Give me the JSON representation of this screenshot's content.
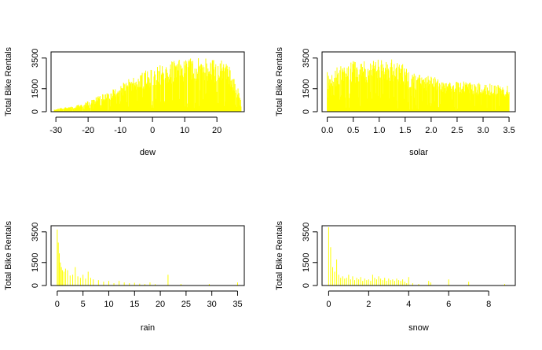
{
  "chart_data": [
    {
      "type": "bar",
      "xlabel": "dew",
      "ylabel": "Total Bike Rentals",
      "color": "#ffff00",
      "xlim": [
        -31.5,
        28.5
      ],
      "ylim": [
        0,
        3900
      ],
      "xticks": [
        -30,
        -20,
        -10,
        0,
        10,
        20
      ],
      "xtick_labels": [
        "-30",
        "-20",
        "-10",
        "0",
        "10",
        "20"
      ],
      "yticks": [
        0,
        1500,
        3500
      ],
      "ytick_labels": [
        "0",
        "1500",
        "3500"
      ],
      "profile": [
        [
          -30.5,
          150
        ],
        [
          -28,
          300
        ],
        [
          -25,
          350
        ],
        [
          -22,
          500
        ],
        [
          -19,
          800
        ],
        [
          -16,
          1100
        ],
        [
          -13,
          1400
        ],
        [
          -10,
          1800
        ],
        [
          -6,
          2300
        ],
        [
          -2,
          2700
        ],
        [
          2,
          3000
        ],
        [
          6,
          3300
        ],
        [
          10,
          3500
        ],
        [
          14,
          3600
        ],
        [
          18,
          3500
        ],
        [
          22,
          3400
        ],
        [
          24,
          3000
        ],
        [
          26,
          1800
        ],
        [
          27.5,
          1100
        ]
      ]
    },
    {
      "type": "bar",
      "xlabel": "solar",
      "ylabel": "Total Bike Rentals",
      "color": "#ffff00",
      "xlim": [
        -0.1,
        3.62
      ],
      "ylim": [
        0,
        3900
      ],
      "xticks": [
        0,
        0.5,
        1,
        1.5,
        2,
        2.5,
        3,
        3.5
      ],
      "xtick_labels": [
        "0.0",
        "0.5",
        "1.0",
        "1.5",
        "2.0",
        "2.5",
        "3.0",
        "3.5"
      ],
      "yticks": [
        0,
        1500,
        3500
      ],
      "ytick_labels": [
        "0",
        "1500",
        "3500"
      ],
      "profile": [
        [
          0,
          2600
        ],
        [
          0.3,
          3100
        ],
        [
          0.6,
          3500
        ],
        [
          0.9,
          3400
        ],
        [
          1.2,
          3500
        ],
        [
          1.4,
          3300
        ],
        [
          1.6,
          2600
        ],
        [
          1.8,
          2500
        ],
        [
          2.0,
          2400
        ],
        [
          2.3,
          2100
        ],
        [
          2.6,
          2000
        ],
        [
          2.9,
          1900
        ],
        [
          3.2,
          1800
        ],
        [
          3.5,
          1700
        ]
      ]
    },
    {
      "type": "bar",
      "xlabel": "rain",
      "ylabel": "Total Bike Rentals",
      "color": "#ffff00",
      "xlim": [
        -1.2,
        36.3
      ],
      "ylim": [
        0,
        3900
      ],
      "xticks": [
        0,
        5,
        10,
        15,
        20,
        25,
        30,
        35
      ],
      "xtick_labels": [
        "0",
        "5",
        "10",
        "15",
        "20",
        "25",
        "30",
        "35"
      ],
      "yticks": [
        0,
        1500,
        3500
      ],
      "ytick_labels": [
        "0",
        "1500",
        "3500"
      ],
      "bars": [
        [
          0,
          3650
        ],
        [
          0.2,
          2800
        ],
        [
          0.4,
          2100
        ],
        [
          0.6,
          1500
        ],
        [
          0.8,
          1200
        ],
        [
          1,
          1000
        ],
        [
          1.3,
          900
        ],
        [
          1.6,
          1100
        ],
        [
          2,
          1000
        ],
        [
          2.5,
          650
        ],
        [
          3,
          700
        ],
        [
          3.5,
          1200
        ],
        [
          4,
          600
        ],
        [
          4.5,
          500
        ],
        [
          5,
          700
        ],
        [
          5.5,
          450
        ],
        [
          6,
          900
        ],
        [
          6.5,
          500
        ],
        [
          7,
          400
        ],
        [
          8,
          350
        ],
        [
          9,
          250
        ],
        [
          10,
          300
        ],
        [
          11,
          150
        ],
        [
          12,
          300
        ],
        [
          13,
          200
        ],
        [
          14,
          150
        ],
        [
          15,
          180
        ],
        [
          16,
          120
        ],
        [
          17,
          100
        ],
        [
          18,
          200
        ],
        [
          19,
          90
        ],
        [
          21.5,
          700
        ],
        [
          24,
          100
        ],
        [
          29.5,
          100
        ],
        [
          35,
          200
        ]
      ]
    },
    {
      "type": "bar",
      "xlabel": "snow",
      "ylabel": "Total Bike Rentals",
      "color": "#ffff00",
      "xlim": [
        -0.33,
        9.33
      ],
      "ylim": [
        0,
        3900
      ],
      "xticks": [
        0,
        2,
        4,
        6,
        8
      ],
      "xtick_labels": [
        "0",
        "2",
        "4",
        "6",
        "8"
      ],
      "yticks": [
        0,
        1500,
        3500
      ],
      "ytick_labels": [
        "0",
        "1500",
        "3500"
      ],
      "bars": [
        [
          0,
          3800
        ],
        [
          0.1,
          2500
        ],
        [
          0.2,
          1200
        ],
        [
          0.3,
          900
        ],
        [
          0.4,
          1700
        ],
        [
          0.5,
          700
        ],
        [
          0.6,
          500
        ],
        [
          0.7,
          600
        ],
        [
          0.8,
          450
        ],
        [
          0.9,
          500
        ],
        [
          1.0,
          700
        ],
        [
          1.1,
          400
        ],
        [
          1.2,
          600
        ],
        [
          1.3,
          350
        ],
        [
          1.4,
          500
        ],
        [
          1.5,
          400
        ],
        [
          1.6,
          550
        ],
        [
          1.7,
          300
        ],
        [
          1.8,
          450
        ],
        [
          1.9,
          350
        ],
        [
          2.0,
          400
        ],
        [
          2.1,
          300
        ],
        [
          2.2,
          700
        ],
        [
          2.3,
          500
        ],
        [
          2.4,
          400
        ],
        [
          2.5,
          600
        ],
        [
          2.6,
          450
        ],
        [
          2.7,
          350
        ],
        [
          2.8,
          500
        ],
        [
          2.9,
          300
        ],
        [
          3.0,
          450
        ],
        [
          3.1,
          350
        ],
        [
          3.2,
          400
        ],
        [
          3.3,
          300
        ],
        [
          3.4,
          450
        ],
        [
          3.5,
          350
        ],
        [
          3.6,
          300
        ],
        [
          3.7,
          400
        ],
        [
          3.8,
          250
        ],
        [
          3.9,
          150
        ],
        [
          4.0,
          550
        ],
        [
          4.2,
          150
        ],
        [
          4.5,
          100
        ],
        [
          5.0,
          300
        ],
        [
          5.1,
          200
        ],
        [
          6.0,
          400
        ],
        [
          7.0,
          250
        ],
        [
          8.8,
          100
        ]
      ]
    }
  ]
}
